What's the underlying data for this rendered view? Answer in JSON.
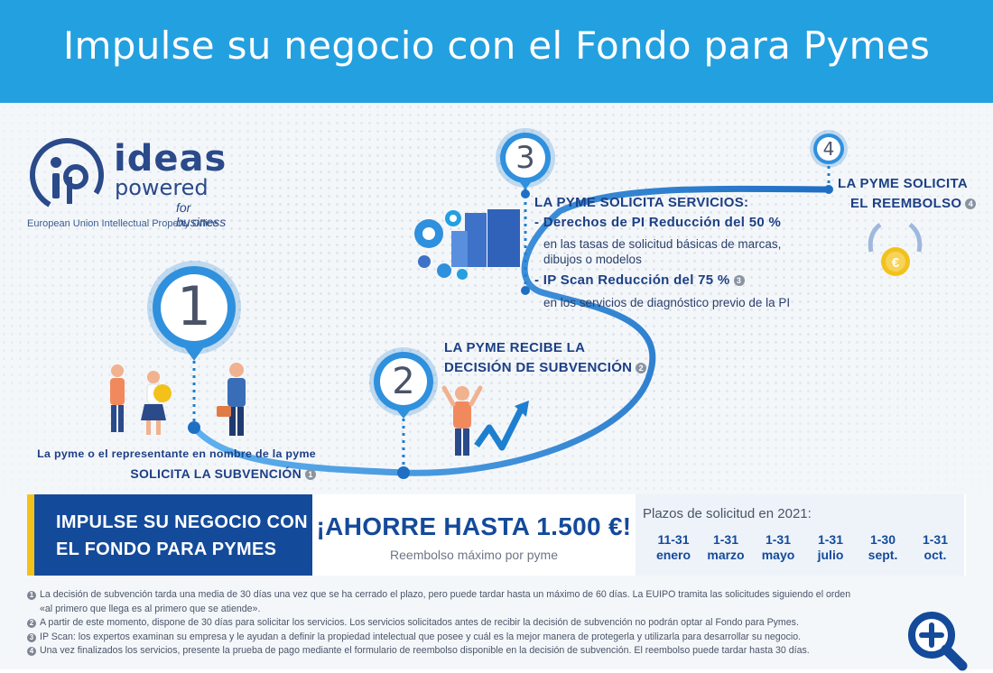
{
  "header": {
    "title": "Impulse su negocio con el Fondo para Pymes"
  },
  "logo": {
    "line1": "ideas",
    "line2": "powered",
    "line3": "for business",
    "line4": "European Union Intellectual Property Office"
  },
  "steps": [
    {
      "number": "1",
      "label_line1": "La pyme o el representante en nombre de la pyme",
      "label_line2": "SOLICITA LA SUBVENCIÓN",
      "badge": "1"
    },
    {
      "number": "2",
      "label_line1": "LA PYME RECIBE LA",
      "label_line2": "DECISIÓN DE SUBVENCIÓN",
      "badge": "2"
    },
    {
      "number": "3",
      "title": "LA PYME SOLICITA SERVICIOS:",
      "item1_title": "- Derechos de PI Reducción del 50 %",
      "item1_sub1": "en las tasas de solicitud básicas de marcas,",
      "item1_sub2": "dibujos o modelos",
      "item2_title": "- IP Scan Reducción del 75 %",
      "item2_badge": "3",
      "item2_sub": "en los servicios de diagnóstico previo de la PI"
    },
    {
      "number": "4",
      "label_line1": "LA PYME SOLICITA",
      "label_line2": "EL REEMBOLSO",
      "badge": "4"
    }
  ],
  "banner": {
    "left_line1": "IMPULSE SU NEGOCIO CON",
    "left_line2": "EL FONDO PARA PYMES",
    "save_title": "¡AHORRE HASTA 1.500 €!",
    "save_sub": "Reembolso máximo por pyme",
    "plazos_title": "Plazos de solicitud en 2021:",
    "dates": [
      {
        "range": "11-31",
        "month": "enero"
      },
      {
        "range": "1-31",
        "month": "marzo"
      },
      {
        "range": "1-31",
        "month": "mayo"
      },
      {
        "range": "1-31",
        "month": "julio"
      },
      {
        "range": "1-30",
        "month": "sept."
      },
      {
        "range": "1-31",
        "month": "oct."
      }
    ]
  },
  "notes": [
    {
      "num": "1",
      "text": "La decisión de subvención tarda una media de 30 días una vez que se ha cerrado el plazo, pero puede tardar hasta un máximo de 60 días. La EUIPO tramita las solicitudes siguiendo el orden"
    },
    {
      "num": "",
      "text": "«al primero que llega es al primero que se atiende»."
    },
    {
      "num": "2",
      "text": "A partir de este momento, dispone de 30 días para solicitar los servicios. Los servicios solicitados antes de recibir la decisión de subvención no podrán optar al Fondo para Pymes."
    },
    {
      "num": "3",
      "text": "IP Scan: los expertos examinan su empresa y le ayudan a definir la propiedad intelectual que posee y cuál es la mejor manera de protegerla y utilizarla para desarrollar su negocio."
    },
    {
      "num": "4",
      "text": "Una vez finalizados los servicios, presente la prueba de pago mediante el formulario de reembolso disponible en la decisión de subvención. El reembolso puede tardar hasta 30 días."
    }
  ],
  "colors": {
    "header": "#23a0e0",
    "navy": "#144a9a",
    "yellow": "#f2c21b",
    "path": "#1e7fd0"
  },
  "icons": {
    "zoom": "zoom-in-icon"
  }
}
